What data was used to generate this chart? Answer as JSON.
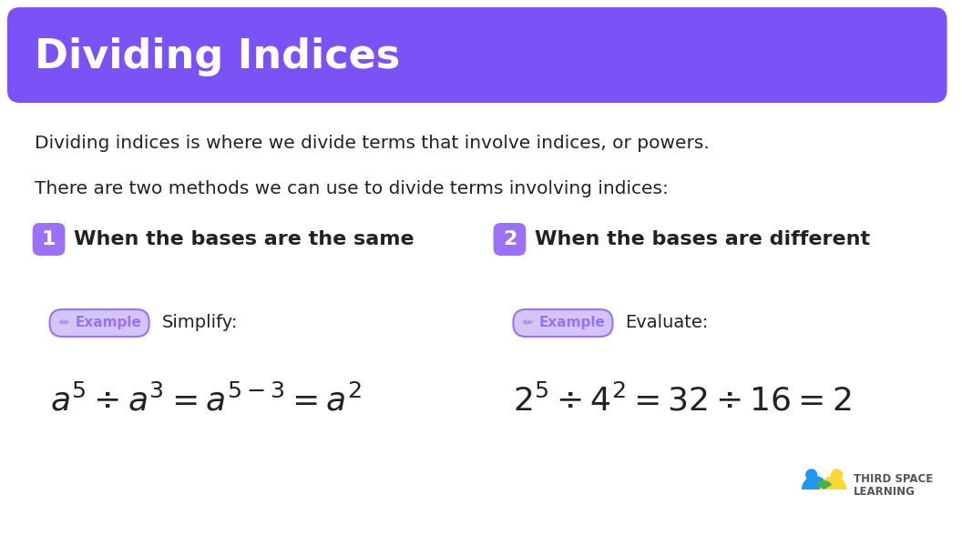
{
  "title": "Dividing Indices",
  "title_bg_color": "#7B52F5",
  "title_text_color": "#FFFFFF",
  "body_bg_color": "#FFFFFF",
  "body_text_color": "#222222",
  "purple_badge_color": "#9B72F5",
  "purple_badge_light": "#D4C5F9",
  "line1": "Dividing indices is where we divide terms that involve indices, or powers.",
  "line2": "There are two methods we can use to divide terms involving indices:",
  "method1_num": "1",
  "method1_title": "When the bases are the same",
  "method2_num": "2",
  "method2_title": "When the bases are different",
  "example_label": "Example",
  "example1_word": "Simplify:",
  "example2_word": "Evaluate:",
  "formula1": "$a^5 \\div a^3 = a^{5-3} = a^2$",
  "formula2": "$2^5 \\div 4^2 = 32 \\div 16 = 2$"
}
